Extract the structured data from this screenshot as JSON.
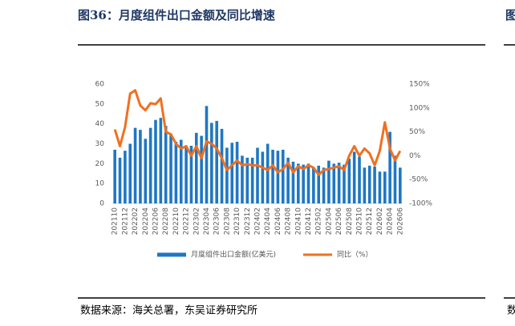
{
  "chart_data": {
    "type": "bar-line",
    "title": "图36：月度组件出口金额及同比增速",
    "source": "数据来源：海关总署，东吴证券研究所",
    "next_panel_title": "图",
    "next_panel_source": "数",
    "categories": [
      "202110",
      null,
      "202112",
      null,
      "202202",
      null,
      "202204",
      null,
      "202206",
      null,
      "202208",
      null,
      "202210",
      null,
      "202212",
      null,
      "202302",
      null,
      "202304",
      null,
      "202306",
      null,
      "202308",
      null,
      "202310",
      null,
      "202312",
      null,
      "202402",
      null,
      "202404",
      null,
      "202406",
      null,
      "202408",
      null,
      "202410",
      null,
      "202412",
      null,
      "202502",
      null,
      "202504",
      null,
      "202506",
      null,
      "202508",
      null,
      "202510",
      null,
      "202512",
      null,
      "202602",
      null,
      "202604",
      null,
      "202606"
    ],
    "series": [
      {
        "name": "月度组件出口金额(亿美元)",
        "type": "bar",
        "color": "#1f77c4",
        "values": [
          27,
          23,
          26.5,
          30,
          38,
          37,
          32.5,
          38,
          42,
          43,
          39,
          35,
          31,
          32,
          29,
          29,
          35.5,
          34,
          49,
          40.5,
          41.5,
          37.5,
          28,
          30.5,
          31,
          24,
          23,
          23,
          28,
          26,
          30,
          27,
          26.5,
          27,
          23,
          21,
          20,
          19.5,
          20,
          18,
          19,
          18,
          21.5,
          20,
          20.5,
          19.5,
          22.5,
          26,
          23.5,
          18,
          19,
          18.5,
          16,
          16,
          36,
          24,
          18
        ]
      },
      {
        "name": "同比（%）",
        "type": "line",
        "axis": "y2",
        "color": "#f07020",
        "values": [
          55,
          20,
          60,
          130,
          137,
          105,
          95,
          110,
          108,
          120,
          50,
          45,
          25,
          15,
          20,
          0,
          20,
          -5,
          30,
          25,
          15,
          -5,
          -30,
          -20,
          -10,
          -20,
          -18,
          -20,
          -20,
          -25,
          -30,
          -20,
          -35,
          -28,
          -15,
          -35,
          -22,
          -28,
          -20,
          -25,
          -40,
          -30,
          -28,
          -25,
          -22,
          -30,
          0,
          20,
          0,
          15,
          5,
          -20,
          10,
          70,
          15,
          -10,
          10
        ]
      }
    ],
    "ylim": [
      0,
      60
    ],
    "yticks": [
      0,
      10,
      20,
      30,
      40,
      50,
      60
    ],
    "y2lim": [
      -100,
      150
    ],
    "y2ticks": [
      {
        "value": -100,
        "label": "-100%"
      },
      {
        "value": -50,
        "label": "-50%"
      },
      {
        "value": 0,
        "label": "0%"
      },
      {
        "value": 50,
        "label": "50%"
      },
      {
        "value": 100,
        "label": "100%"
      },
      {
        "value": 150,
        "label": "150%"
      }
    ],
    "legend": "bottom"
  }
}
